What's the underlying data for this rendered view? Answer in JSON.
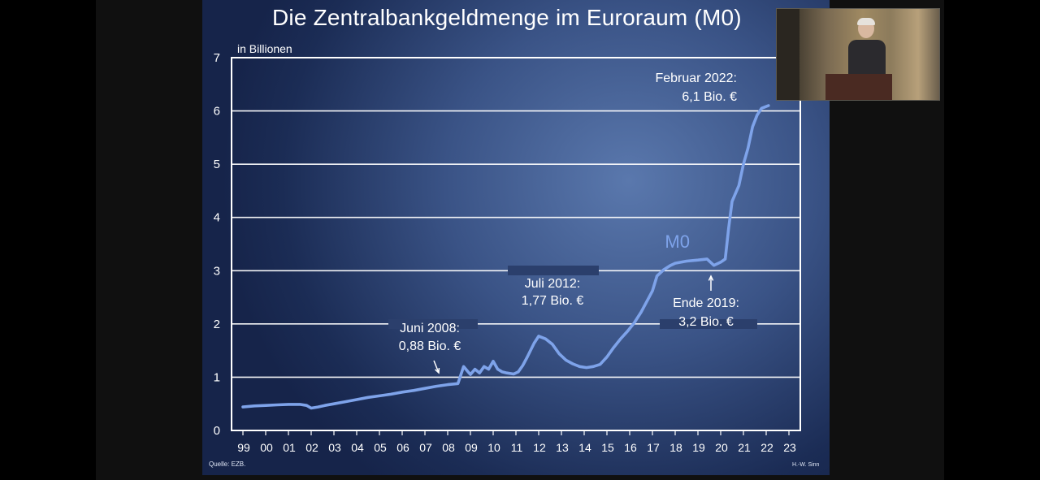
{
  "slide": {
    "title": "Die Zentralbankgeldmenge im Euroraum (M0)",
    "unit_label": "in Billionen",
    "source": "Quelle: EZB.",
    "author": "H.-W. Sinn"
  },
  "colors": {
    "line": "#7ea3ea",
    "grid": "#ffffff",
    "text": "#ffffff"
  },
  "chart_data": {
    "type": "line",
    "title": "Die Zentralbankgeldmenge im Euroraum (M0)",
    "ylabel": "in Billionen",
    "xlabel": "",
    "ylim": [
      0,
      7
    ],
    "xlim": [
      1999,
      2024
    ],
    "yticks": [
      "0",
      "1",
      "2",
      "3",
      "4",
      "5",
      "6",
      "7"
    ],
    "xticks": [
      "99",
      "00",
      "01",
      "02",
      "03",
      "04",
      "05",
      "06",
      "07",
      "08",
      "09",
      "10",
      "11",
      "12",
      "13",
      "14",
      "15",
      "16",
      "17",
      "18",
      "19",
      "20",
      "21",
      "22",
      "23"
    ],
    "grid": "horizontal",
    "series": [
      {
        "name": "M0",
        "points": [
          [
            1999.0,
            0.44
          ],
          [
            1999.5,
            0.46
          ],
          [
            2000.0,
            0.47
          ],
          [
            2000.5,
            0.48
          ],
          [
            2001.0,
            0.49
          ],
          [
            2001.5,
            0.49
          ],
          [
            2001.8,
            0.47
          ],
          [
            2002.0,
            0.42
          ],
          [
            2002.3,
            0.44
          ],
          [
            2002.6,
            0.47
          ],
          [
            2003.0,
            0.5
          ],
          [
            2003.5,
            0.54
          ],
          [
            2004.0,
            0.58
          ],
          [
            2004.5,
            0.62
          ],
          [
            2005.0,
            0.65
          ],
          [
            2005.5,
            0.68
          ],
          [
            2006.0,
            0.72
          ],
          [
            2006.5,
            0.75
          ],
          [
            2007.0,
            0.79
          ],
          [
            2007.5,
            0.83
          ],
          [
            2008.0,
            0.86
          ],
          [
            2008.45,
            0.88
          ],
          [
            2008.7,
            1.2
          ],
          [
            2008.9,
            1.1
          ],
          [
            2009.0,
            1.05
          ],
          [
            2009.2,
            1.15
          ],
          [
            2009.4,
            1.08
          ],
          [
            2009.6,
            1.2
          ],
          [
            2009.8,
            1.15
          ],
          [
            2010.0,
            1.3
          ],
          [
            2010.2,
            1.15
          ],
          [
            2010.4,
            1.1
          ],
          [
            2010.6,
            1.08
          ],
          [
            2010.9,
            1.06
          ],
          [
            2011.1,
            1.1
          ],
          [
            2011.3,
            1.22
          ],
          [
            2011.5,
            1.38
          ],
          [
            2011.8,
            1.64
          ],
          [
            2012.0,
            1.77
          ],
          [
            2012.3,
            1.72
          ],
          [
            2012.6,
            1.62
          ],
          [
            2012.9,
            1.44
          ],
          [
            2013.2,
            1.32
          ],
          [
            2013.5,
            1.25
          ],
          [
            2013.8,
            1.2
          ],
          [
            2014.1,
            1.18
          ],
          [
            2014.4,
            1.2
          ],
          [
            2014.7,
            1.24
          ],
          [
            2015.0,
            1.38
          ],
          [
            2015.3,
            1.56
          ],
          [
            2015.6,
            1.72
          ],
          [
            2015.9,
            1.86
          ],
          [
            2016.2,
            2.02
          ],
          [
            2016.5,
            2.22
          ],
          [
            2016.8,
            2.46
          ],
          [
            2017.0,
            2.62
          ],
          [
            2017.2,
            2.9
          ],
          [
            2017.5,
            3.02
          ],
          [
            2017.8,
            3.1
          ],
          [
            2018.0,
            3.14
          ],
          [
            2018.5,
            3.18
          ],
          [
            2019.0,
            3.2
          ],
          [
            2019.4,
            3.22
          ],
          [
            2019.7,
            3.1
          ],
          [
            2020.0,
            3.16
          ],
          [
            2020.2,
            3.22
          ],
          [
            2020.35,
            3.8
          ],
          [
            2020.5,
            4.3
          ],
          [
            2020.8,
            4.6
          ],
          [
            2021.0,
            5.0
          ],
          [
            2021.2,
            5.3
          ],
          [
            2021.4,
            5.7
          ],
          [
            2021.6,
            5.92
          ],
          [
            2021.8,
            6.05
          ],
          [
            2022.1,
            6.1
          ]
        ]
      }
    ],
    "annotations": [
      {
        "id": "juni2008",
        "line1": "Juni 2008:",
        "line2": "0,88 Bio. €"
      },
      {
        "id": "juli2012",
        "line1": "Juli 2012:",
        "line2": "1,77 Bio. €"
      },
      {
        "id": "ende2019",
        "line1": "Ende 2019:",
        "line2": "3,2 Bio. €"
      },
      {
        "id": "feb2022",
        "line1": "Februar 2022:",
        "line2": "6,1 Bio. €"
      }
    ],
    "series_label": "M0"
  }
}
